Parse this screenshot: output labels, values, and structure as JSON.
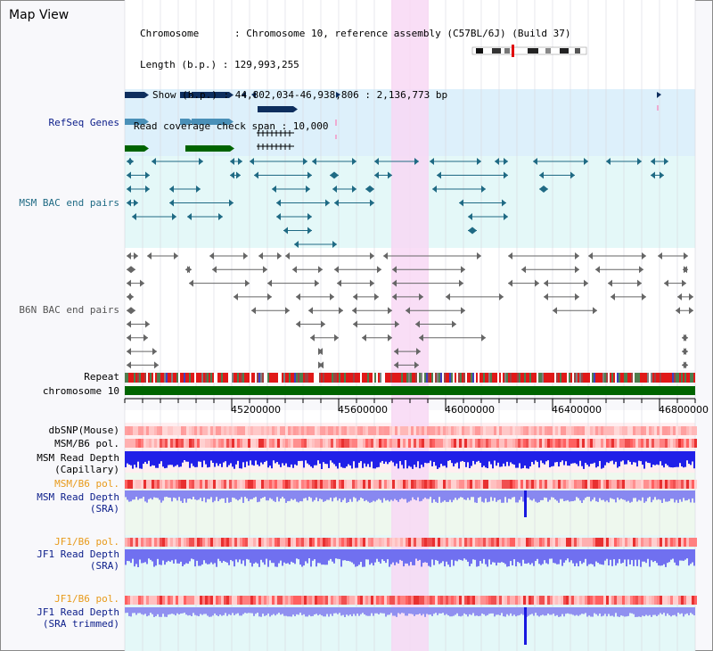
{
  "app": {
    "title": "Map View"
  },
  "info": {
    "chromosome": "Chromosome      : Chromosome 10, reference assembly (C57BL/6J) (Build 37)",
    "length": "Length (b.p.) : 129,993,255",
    "show": "Show (b.p.) : 44,802,034-46,938,806 : 2,136,773 bp",
    "span": "Read coverage check span : 10,000"
  },
  "tracks": {
    "refseq": "RefSeq Genes",
    "msm_bac": "MSM BAC end pairs",
    "b6n_bac": "B6N BAC end pairs",
    "repeat": "Repeat",
    "chromosome": "chromosome 10",
    "dbsnp": "dbSNP(Mouse)",
    "msm_b6_pol_1": "MSM/B6 pol.",
    "msm_read_cap_1": "MSM Read Depth",
    "msm_read_cap_2": "(Capillary)",
    "msm_b6_pol_2": "MSM/B6 pol.",
    "msm_read_sra_1": "MSM Read Depth",
    "msm_read_sra_2": "(SRA)",
    "jf1_pol_1": "JF1/B6 pol.",
    "jf1_read_sra_1": "JF1 Read Depth",
    "jf1_read_sra_2": "(SRA)",
    "jf1_pol_2": "JF1/B6 pol.",
    "jf1_read_trim_1": "JF1 Read Depth",
    "jf1_read_trim_2": "(SRA trimmed)"
  },
  "axis": {
    "ticks": [
      "45200000",
      "45600000",
      "46000000",
      "46400000",
      "46800000"
    ]
  },
  "colors": {
    "highlight": "#f8d8f4",
    "refseq_bg": "#ddf0fb",
    "bac_bg": "#e4f8f8",
    "refseq_label": "#0b1d8a",
    "msm_label": "#1f6a84",
    "b6n_label": "#555555",
    "orange_label": "#e89a1a",
    "blue_label": "#0b1d8a",
    "gene_dark": "#0d2e5e",
    "gene_light": "#4a90b8",
    "gene_green": "#006400",
    "chrom_green": "#006400"
  }
}
